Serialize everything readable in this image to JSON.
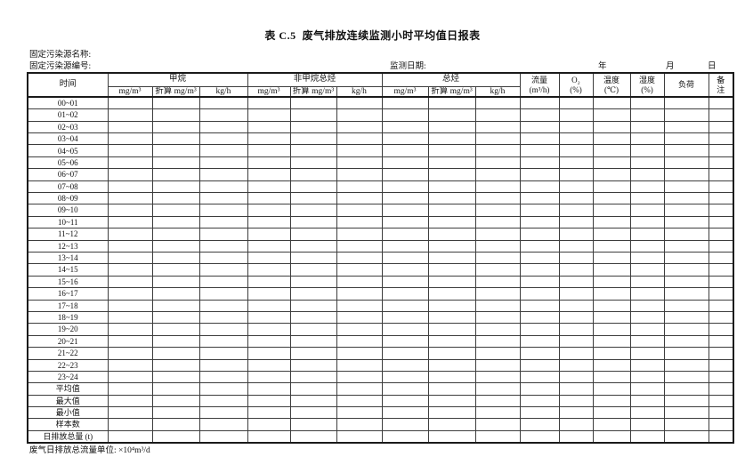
{
  "title": "表 C.5  废气排放连续监测小时平均值日报表",
  "meta": {
    "source_name_label": "固定污染源名称:",
    "source_code_label": "固定污染源编号:",
    "date_label": "监测日期:",
    "year_label": "年",
    "month_label": "月",
    "day_label": "日"
  },
  "table": {
    "time_header": "时间",
    "groups": [
      {
        "label": "甲烷",
        "sub": [
          "mg/m³",
          "折算 mg/m³",
          "kg/h"
        ]
      },
      {
        "label": "非甲烷总烃",
        "sub": [
          "mg/m³",
          "折算 mg/m³",
          "kg/h"
        ]
      },
      {
        "label": "总烃",
        "sub": [
          "mg/m³",
          "折算 mg/m³",
          "kg/h"
        ]
      }
    ],
    "singles": [
      {
        "line1": "流量",
        "line2": "(m³/h)"
      },
      {
        "line1": "O₂",
        "line2": "(%)"
      },
      {
        "line1": "温度",
        "line2": "(℃)"
      },
      {
        "line1": "湿度",
        "line2": "(%)"
      },
      {
        "line1": "负荷",
        "line2": ""
      },
      {
        "line1": "备",
        "line2": "注"
      }
    ],
    "rows": [
      "00~01",
      "01~02",
      "02~03",
      "03~04",
      "04~05",
      "05~06",
      "06~07",
      "07~08",
      "08~09",
      "09~10",
      "10~11",
      "11~12",
      "12~13",
      "13~14",
      "14~15",
      "15~16",
      "16~17",
      "17~18",
      "18~19",
      "19~20",
      "20~21",
      "21~22",
      "22~23",
      "23~24",
      "平均值",
      "最大值",
      "最小值",
      "样本数",
      "日排放总量 (t)"
    ],
    "empty_cell_value": ""
  },
  "footer": {
    "note": "废气日排放总流量单位: ×10⁴m³/d"
  }
}
